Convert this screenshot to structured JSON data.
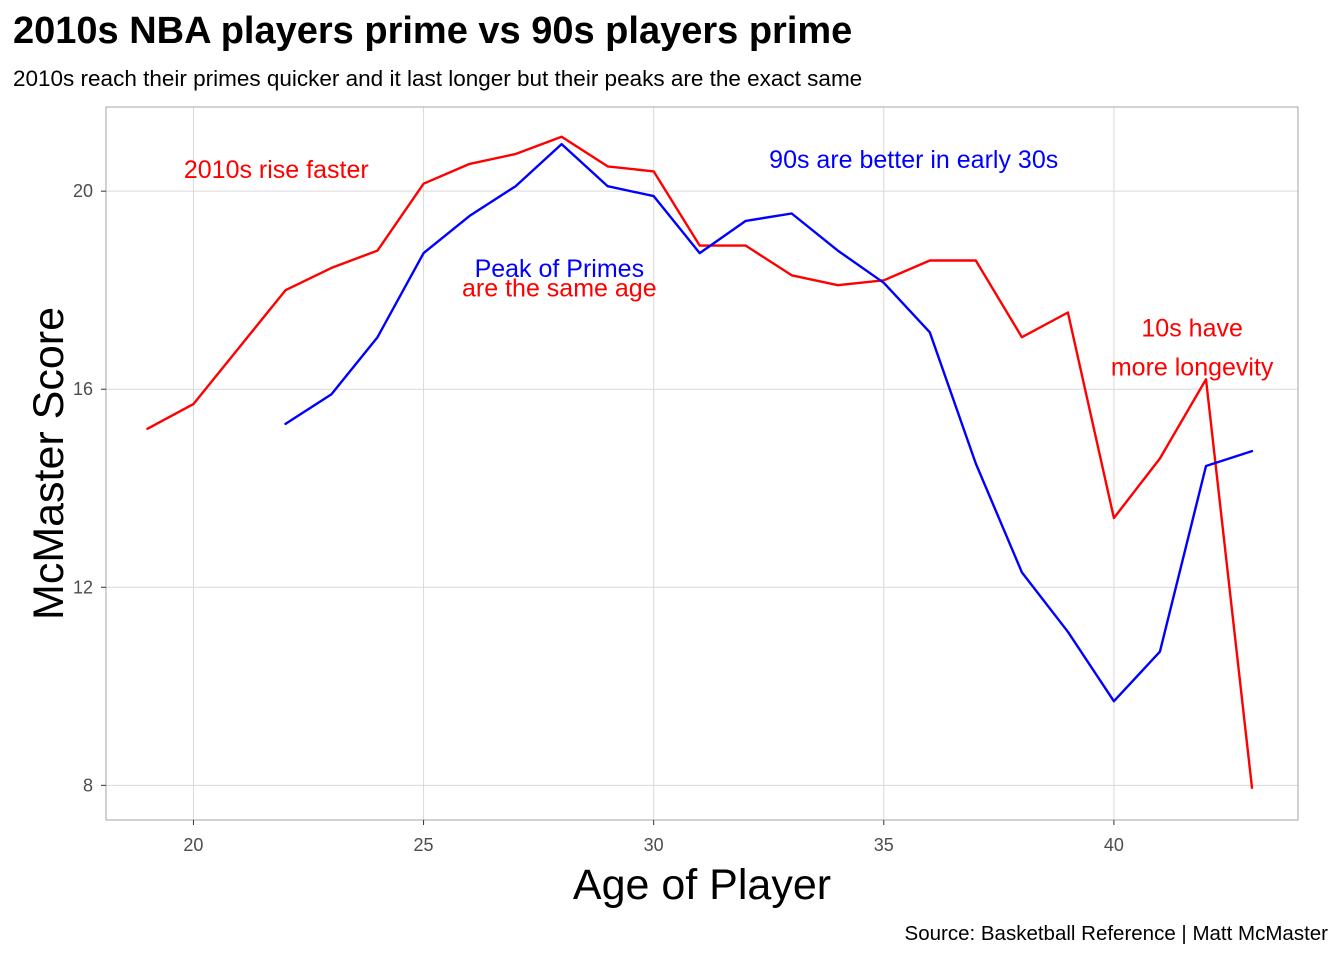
{
  "title": "2010s NBA players prime vs 90s players prime",
  "subtitle": "2010s reach their primes quicker and it last longer but their peaks are the exact same",
  "caption": "Source: Basketball Reference | Matt McMaster",
  "colors": {
    "series_2010s": "#ff0000",
    "series_90s": "#0000ff",
    "grid": "#d9d9d9",
    "panel_border": "#a6a6a6"
  },
  "chart_data": {
    "type": "line",
    "title": "2010s NBA players prime vs 90s players prime",
    "subtitle": "2010s reach their primes quicker and it last longer but their peaks are the exact same",
    "xlabel": "Age of Player",
    "ylabel": "McMaster Score",
    "xlim": [
      18.1,
      44.0
    ],
    "ylim": [
      7.3,
      21.7
    ],
    "xticks": [
      20,
      25,
      30,
      35,
      40
    ],
    "yticks": [
      8,
      12,
      16,
      20
    ],
    "grid": true,
    "legend": "none",
    "series": [
      {
        "color": "#ff0000",
        "x": [
          19,
          20,
          21,
          22,
          23,
          24,
          25,
          26,
          27,
          28,
          29,
          30,
          31,
          32,
          33,
          34,
          35,
          36,
          37,
          38,
          39,
          40,
          41,
          42,
          43
        ],
        "y": [
          15.2,
          15.7,
          16.85,
          18.0,
          18.45,
          18.8,
          20.15,
          20.55,
          20.75,
          21.1,
          20.5,
          20.4,
          18.9,
          18.9,
          18.3,
          18.1,
          18.2,
          18.6,
          18.6,
          17.05,
          17.55,
          13.4,
          14.6,
          16.2,
          7.95
        ]
      },
      {
        "color": "#0000ff",
        "x": [
          22,
          23,
          24,
          25,
          26,
          27,
          28,
          29,
          30,
          31,
          32,
          33,
          34,
          35,
          36,
          37,
          38,
          39,
          40,
          41,
          42,
          43
        ],
        "y": [
          15.3,
          15.9,
          17.05,
          18.75,
          19.5,
          20.1,
          20.95,
          20.1,
          19.9,
          18.75,
          19.4,
          19.55,
          18.8,
          18.15,
          17.15,
          14.5,
          12.3,
          11.1,
          9.7,
          10.7,
          14.45,
          14.75
        ]
      }
    ],
    "annotations": [
      {
        "lines": [
          "2010s rise faster"
        ],
        "x": 21.8,
        "y": 20.45,
        "color": "#ff0000"
      },
      {
        "lines": [
          "90s are better in early 30s"
        ],
        "x": 35.65,
        "y": 20.65,
        "color": "#0000ff"
      },
      {
        "lines": [
          "Peak of Primes"
        ],
        "x": 27.95,
        "y": 18.45,
        "color": "#0000ff"
      },
      {
        "lines": [
          "are the same age"
        ],
        "x": 27.95,
        "y": 18.05,
        "color": "#ff0000"
      },
      {
        "lines": [
          "10s have",
          "more longevity"
        ],
        "x": 41.7,
        "y": 17.25,
        "color": "#ff0000"
      }
    ]
  }
}
